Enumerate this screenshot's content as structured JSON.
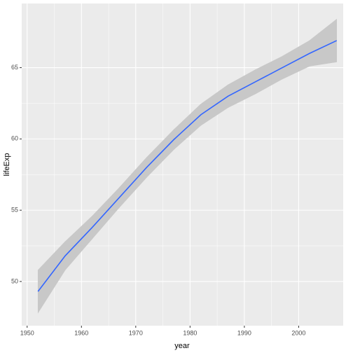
{
  "chart_data": {
    "type": "smooth",
    "x_label": "year",
    "y_label": "lifeExp",
    "x": [
      1952,
      1957,
      1962,
      1967,
      1972,
      1977,
      1982,
      1987,
      1992,
      1997,
      2002,
      2007
    ],
    "series": [
      {
        "color": "#3366ff",
        "ribbon_color": "#c8c8c8",
        "values": [
          49.3,
          51.8,
          53.8,
          55.9,
          58.0,
          59.95,
          61.7,
          63.0,
          64.0,
          65.0,
          66.0,
          66.9
        ],
        "lower": [
          47.8,
          50.8,
          53.0,
          55.2,
          57.3,
          59.25,
          60.95,
          62.2,
          63.15,
          64.2,
          65.1,
          65.4
        ],
        "upper": [
          50.8,
          52.8,
          54.6,
          56.6,
          58.7,
          60.65,
          62.45,
          63.8,
          64.85,
          65.8,
          66.9,
          68.4
        ]
      }
    ],
    "xlim": [
      1949,
      2008.2
    ],
    "ylim": [
      46.9,
      69.5
    ],
    "xticks": [
      1950,
      1960,
      1970,
      1980,
      1990,
      2000
    ],
    "yticks": [
      50,
      55,
      60,
      65
    ],
    "grid": true,
    "background": "#ebebeb"
  }
}
